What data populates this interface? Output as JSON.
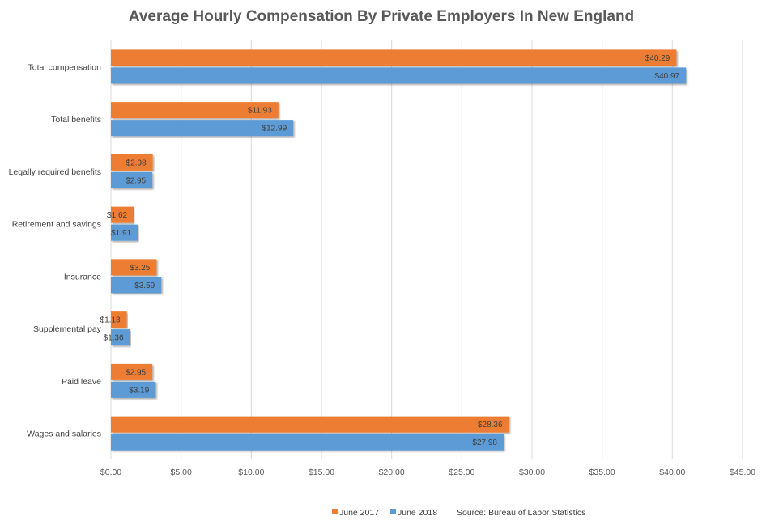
{
  "chart_data": {
    "type": "bar",
    "orientation": "horizontal",
    "title": "Average Hourly Compensation By Private Employers In New England",
    "categories": [
      "Total compensation",
      "Total benefits",
      "Legally required benefits",
      "Retirement and savings",
      "Insurance",
      "Supplemental pay",
      "Paid leave",
      "Wages and salaries"
    ],
    "series": [
      {
        "name": "June 2017",
        "color": "#ED7D31",
        "values": [
          40.29,
          11.93,
          2.98,
          1.62,
          3.25,
          1.13,
          2.95,
          28.36
        ],
        "labels": [
          "$40.29",
          "$11.93",
          "$2.98",
          "$1.62",
          "$3.25",
          "$1.13",
          "$2.95",
          "$28.36"
        ]
      },
      {
        "name": "June 2018",
        "color": "#5B9BD5",
        "values": [
          40.97,
          12.99,
          2.95,
          1.91,
          3.59,
          1.36,
          3.19,
          27.98
        ],
        "labels": [
          "$40.97",
          "$12.99",
          "$2.95",
          "$1.91",
          "$3.59",
          "$1.36",
          "$3.19",
          "$27.98"
        ]
      }
    ],
    "xlim": [
      0,
      45
    ],
    "xticks": [
      0,
      5,
      10,
      15,
      20,
      25,
      30,
      35,
      40,
      45
    ],
    "xtick_labels": [
      "$0.00",
      "$5.00",
      "$10.00",
      "$15.00",
      "$20.00",
      "$25.00",
      "$30.00",
      "$35.00",
      "$40.00",
      "$45.00"
    ],
    "grid": "vertical",
    "legend_position": "bottom",
    "source_note": "Source: Bureau of Labor Statistics"
  }
}
